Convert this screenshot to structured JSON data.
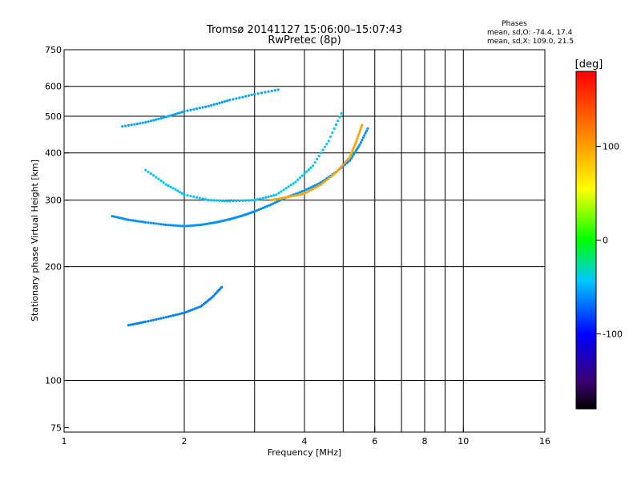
{
  "chart_data": {
    "type": "scatter",
    "title": "Tromsø 20141127 15:06:00–15:07:43",
    "subtitle": "RwPretec (8p)",
    "xlabel": "Frequency [MHz]",
    "ylabel": "Stationary phase Virtual Height [km]",
    "x_scale": "log",
    "y_scale": "log",
    "xlim": [
      1,
      16
    ],
    "ylim": [
      73,
      750
    ],
    "x_ticks": [
      1,
      2,
      4,
      6,
      8,
      10,
      16
    ],
    "y_ticks": [
      75,
      100,
      200,
      300,
      400,
      500,
      600,
      750
    ],
    "x_gridlines": [
      2,
      3,
      4,
      5,
      6,
      7,
      8,
      9,
      10
    ],
    "y_gridlines": [
      100,
      200,
      300,
      400,
      500,
      600
    ],
    "grid": true,
    "legend": {
      "title": "Phases",
      "lines": [
        "mean, sd,O: -74.4, 17.4",
        "mean, sd,X: 109.0, 21.5"
      ],
      "placement": "top-right"
    },
    "colorbar": {
      "label": "[deg]",
      "range": [
        -180,
        180
      ],
      "ticks": [
        100,
        0,
        -100
      ]
    },
    "traces": [
      {
        "desc": "F-layer trace",
        "color_phase": -85,
        "points": [
          [
            1.32,
            272
          ],
          [
            1.45,
            266
          ],
          [
            1.6,
            262
          ],
          [
            1.8,
            258
          ],
          [
            2.0,
            256
          ],
          [
            2.2,
            258
          ],
          [
            2.4,
            262
          ],
          [
            2.6,
            267
          ],
          [
            2.8,
            273
          ],
          [
            3.0,
            280
          ],
          [
            3.3,
            292
          ],
          [
            3.6,
            305
          ],
          [
            4.0,
            318
          ],
          [
            4.4,
            334
          ],
          [
            4.8,
            356
          ],
          [
            5.2,
            382
          ],
          [
            5.5,
            420
          ],
          [
            5.8,
            470
          ]
        ]
      },
      {
        "desc": "F-layer upper trace",
        "color_phase": -70,
        "points": [
          [
            1.6,
            360
          ],
          [
            1.8,
            330
          ],
          [
            2.0,
            310
          ],
          [
            2.3,
            300
          ],
          [
            2.6,
            298
          ],
          [
            3.0,
            300
          ],
          [
            3.4,
            310
          ],
          [
            3.8,
            335
          ],
          [
            4.2,
            370
          ],
          [
            4.6,
            430
          ],
          [
            5.0,
            520
          ]
        ]
      },
      {
        "desc": "Lower trace",
        "color_phase": -90,
        "points": [
          [
            1.45,
            140
          ],
          [
            1.6,
            143
          ],
          [
            1.8,
            147
          ],
          [
            2.0,
            151
          ],
          [
            2.2,
            157
          ],
          [
            2.35,
            166
          ],
          [
            2.5,
            178
          ]
        ]
      },
      {
        "desc": "High multi-hop trace",
        "color_phase": -80,
        "points": [
          [
            1.4,
            470
          ],
          [
            1.6,
            482
          ],
          [
            1.8,
            498
          ],
          [
            2.0,
            515
          ],
          [
            2.3,
            532
          ],
          [
            2.6,
            552
          ],
          [
            3.0,
            572
          ],
          [
            3.5,
            590
          ]
        ]
      },
      {
        "desc": "Orange X trace",
        "color_phase": 130,
        "points": [
          [
            3.3,
            300
          ],
          [
            3.6,
            305
          ],
          [
            4.0,
            312
          ],
          [
            4.4,
            330
          ],
          [
            4.8,
            355
          ],
          [
            5.2,
            390
          ],
          [
            5.4,
            430
          ],
          [
            5.6,
            480
          ]
        ]
      }
    ]
  }
}
